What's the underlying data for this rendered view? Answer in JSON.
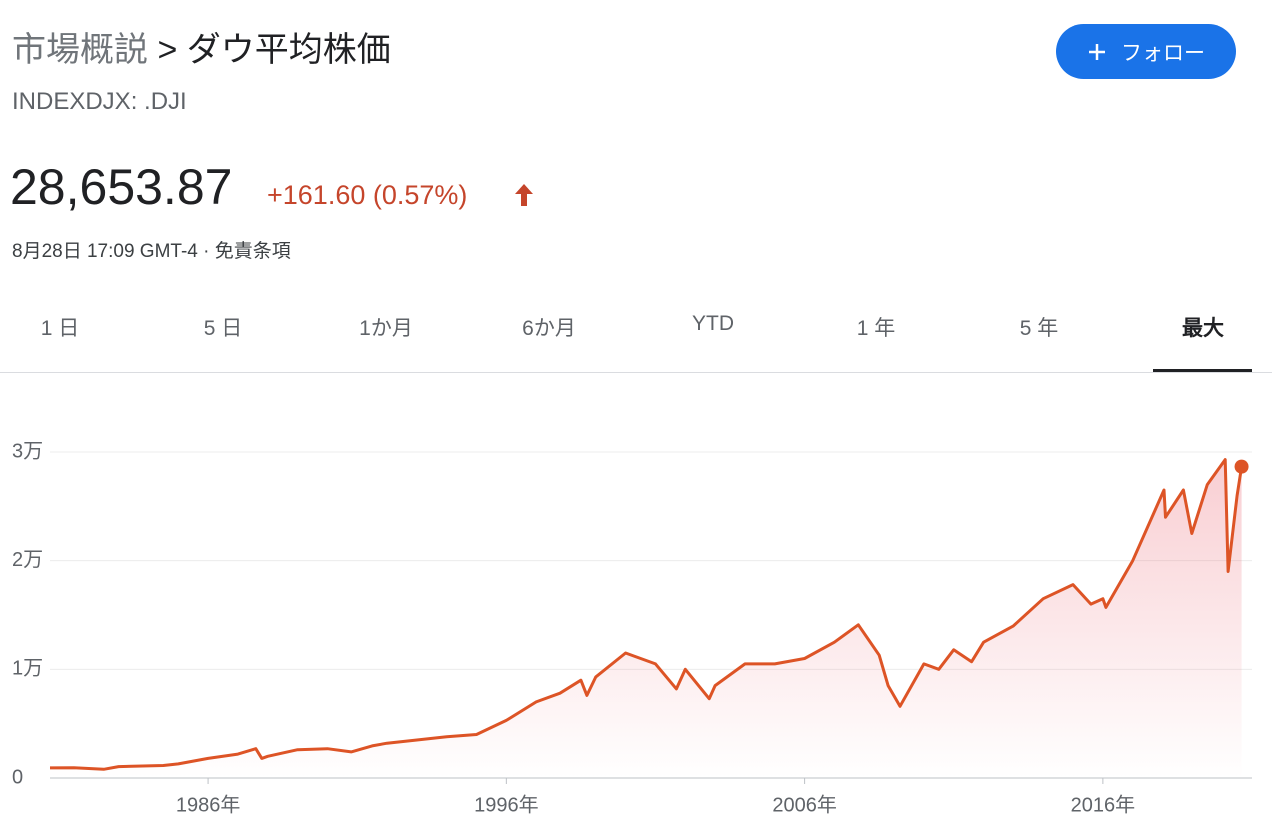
{
  "header": {
    "breadcrumb": "市場概説",
    "separator": ">",
    "title": "ダウ平均株価",
    "ticker": "INDEXDJX: .DJI",
    "follow_button": "フォロー"
  },
  "quote": {
    "price": "28,653.87",
    "change": "+161.60 (0.57%)",
    "timestamp": "8月28日 17:09 GMT-4",
    "timestamp_separator": "·",
    "disclaimer": "免責条項"
  },
  "tabs": [
    {
      "label": "1 日"
    },
    {
      "label": "5 日"
    },
    {
      "label": "1か月"
    },
    {
      "label": "6か月"
    },
    {
      "label": "YTD"
    },
    {
      "label": "1 年"
    },
    {
      "label": "5 年"
    },
    {
      "label": "最大",
      "selected": true
    }
  ],
  "chart_data": {
    "type": "line",
    "x": [
      1980.7,
      1981.5,
      1982.5,
      1983.0,
      1984.5,
      1985.0,
      1986.0,
      1987.0,
      1987.6,
      1987.8,
      1988.0,
      1989.0,
      1990.0,
      1990.8,
      1991.5,
      1992.0,
      1993.0,
      1994.0,
      1995.0,
      1996.0,
      1997.0,
      1997.8,
      1998.5,
      1998.7,
      1999.0,
      2000.0,
      2001.0,
      2001.7,
      2002.0,
      2002.8,
      2003.0,
      2004.0,
      2005.0,
      2006.0,
      2007.0,
      2007.8,
      2008.5,
      2008.8,
      2009.2,
      2010.0,
      2010.5,
      2011.0,
      2011.6,
      2012.0,
      2013.0,
      2014.0,
      2015.0,
      2015.6,
      2016.0,
      2016.1,
      2017.0,
      2018.05,
      2018.1,
      2018.7,
      2018.98,
      2019.5,
      2020.1,
      2020.2,
      2020.5,
      2020.65
    ],
    "series": [
      {
        "name": "ダウ平均株価",
        "color": "#dd5426",
        "values": [
          930,
          950,
          800,
          1050,
          1150,
          1300,
          1800,
          2200,
          2700,
          1800,
          2000,
          2600,
          2700,
          2400,
          2950,
          3200,
          3500,
          3800,
          4000,
          5300,
          7000,
          7800,
          9000,
          7600,
          9300,
          11500,
          10500,
          8200,
          10000,
          7300,
          8500,
          10500,
          10500,
          11000,
          12500,
          14100,
          11300,
          8500,
          6600,
          10500,
          10000,
          11800,
          10700,
          12500,
          14000,
          16500,
          17800,
          16000,
          16500,
          15700,
          20000,
          26500,
          24000,
          26500,
          22500,
          27000,
          29300,
          19000,
          26000,
          28654
        ]
      }
    ],
    "xlim": [
      1980.7,
      2021
    ],
    "xticks": [
      {
        "value": 1986,
        "label": "1986年"
      },
      {
        "value": 1996,
        "label": "1996年"
      },
      {
        "value": 2006,
        "label": "2006年"
      },
      {
        "value": 2016,
        "label": "2016年"
      }
    ],
    "ylim": [
      0,
      30000
    ],
    "yticks": [
      0,
      {
        "value": 10000,
        "label": "1万"
      },
      {
        "value": 20000,
        "label": "2万"
      },
      {
        "value": 30000,
        "label": "3万"
      }
    ],
    "grid": true
  }
}
